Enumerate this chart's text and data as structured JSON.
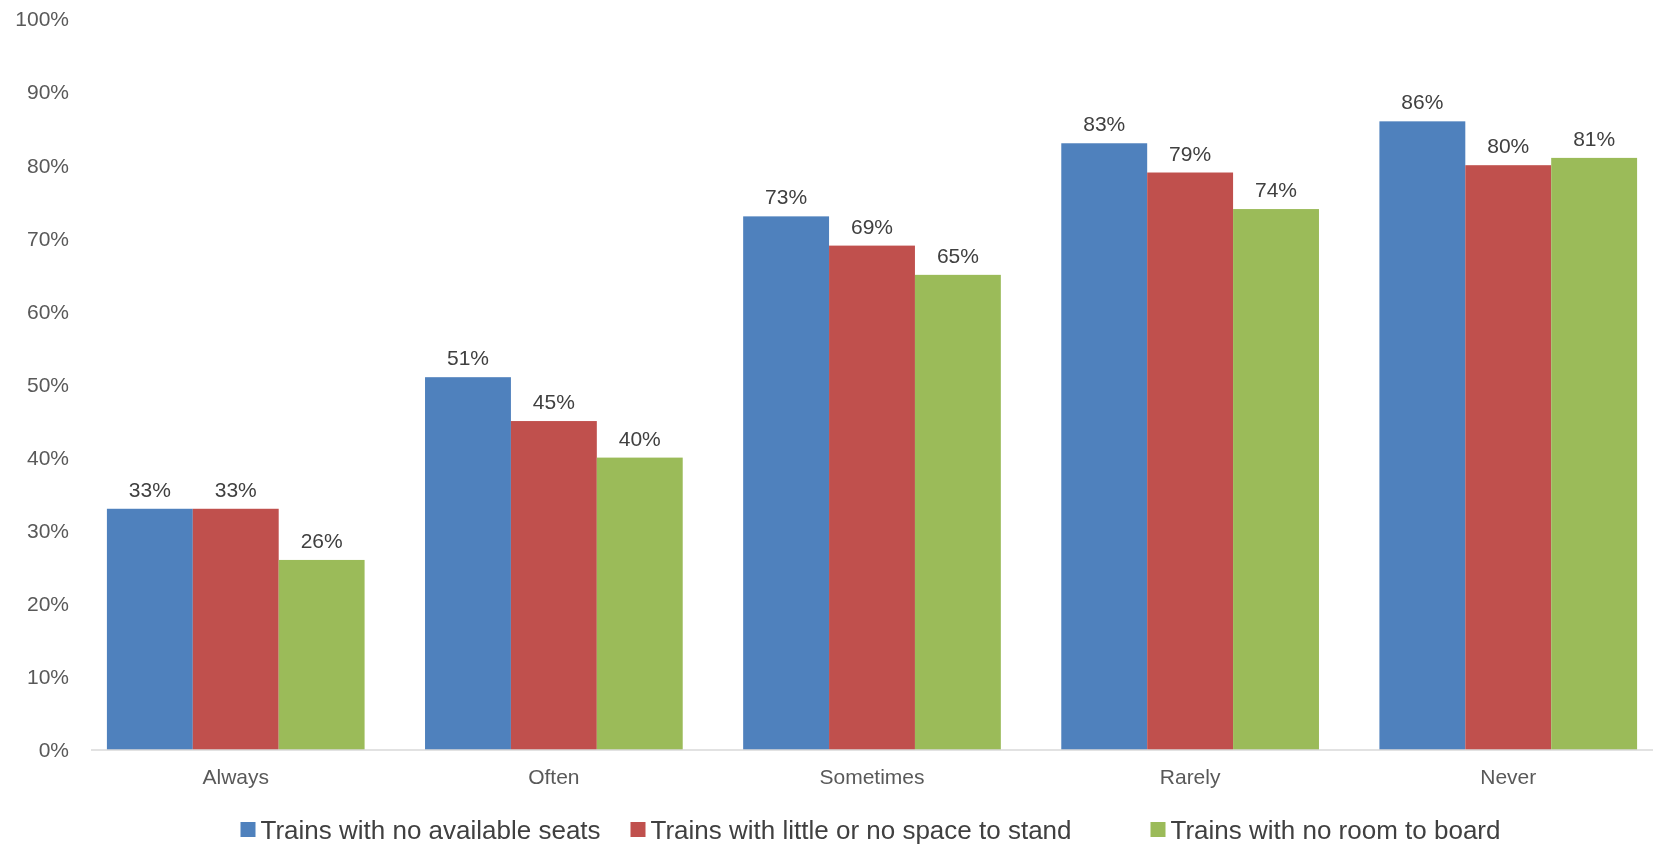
{
  "chart_data": {
    "type": "bar",
    "categories": [
      "Always",
      "Often",
      "Sometimes",
      "Rarely",
      "Never"
    ],
    "series": [
      {
        "name": "Trains with no available seats",
        "color": "#4f81bd",
        "values": [
          33,
          51,
          73,
          83,
          86
        ],
        "value_labels": [
          "33%",
          "51%",
          "73%",
          "83%",
          "86%"
        ]
      },
      {
        "name": "Trains with little or no space to stand",
        "color": "#c0504d",
        "values": [
          33,
          45,
          69,
          79,
          80
        ],
        "value_labels": [
          "33%",
          "45%",
          "69%",
          "79%",
          "80%"
        ]
      },
      {
        "name": "Trains with no room to board",
        "color": "#9bbb59",
        "values": [
          26,
          40,
          65,
          74,
          81
        ],
        "value_labels": [
          "26%",
          "40%",
          "65%",
          "74%",
          "81%"
        ]
      }
    ],
    "ylim": [
      0,
      100
    ],
    "yticks": [
      {
        "value": 0,
        "label": "0%"
      },
      {
        "value": 10,
        "label": "10%"
      },
      {
        "value": 20,
        "label": "20%"
      },
      {
        "value": 30,
        "label": "30%"
      },
      {
        "value": 40,
        "label": "40%"
      },
      {
        "value": 50,
        "label": "50%"
      },
      {
        "value": 60,
        "label": "60%"
      },
      {
        "value": 70,
        "label": "70%"
      },
      {
        "value": 80,
        "label": "80%"
      },
      {
        "value": 90,
        "label": "90%"
      },
      {
        "value": 100,
        "label": "100%"
      }
    ],
    "grid": false,
    "legend": "bottom"
  }
}
